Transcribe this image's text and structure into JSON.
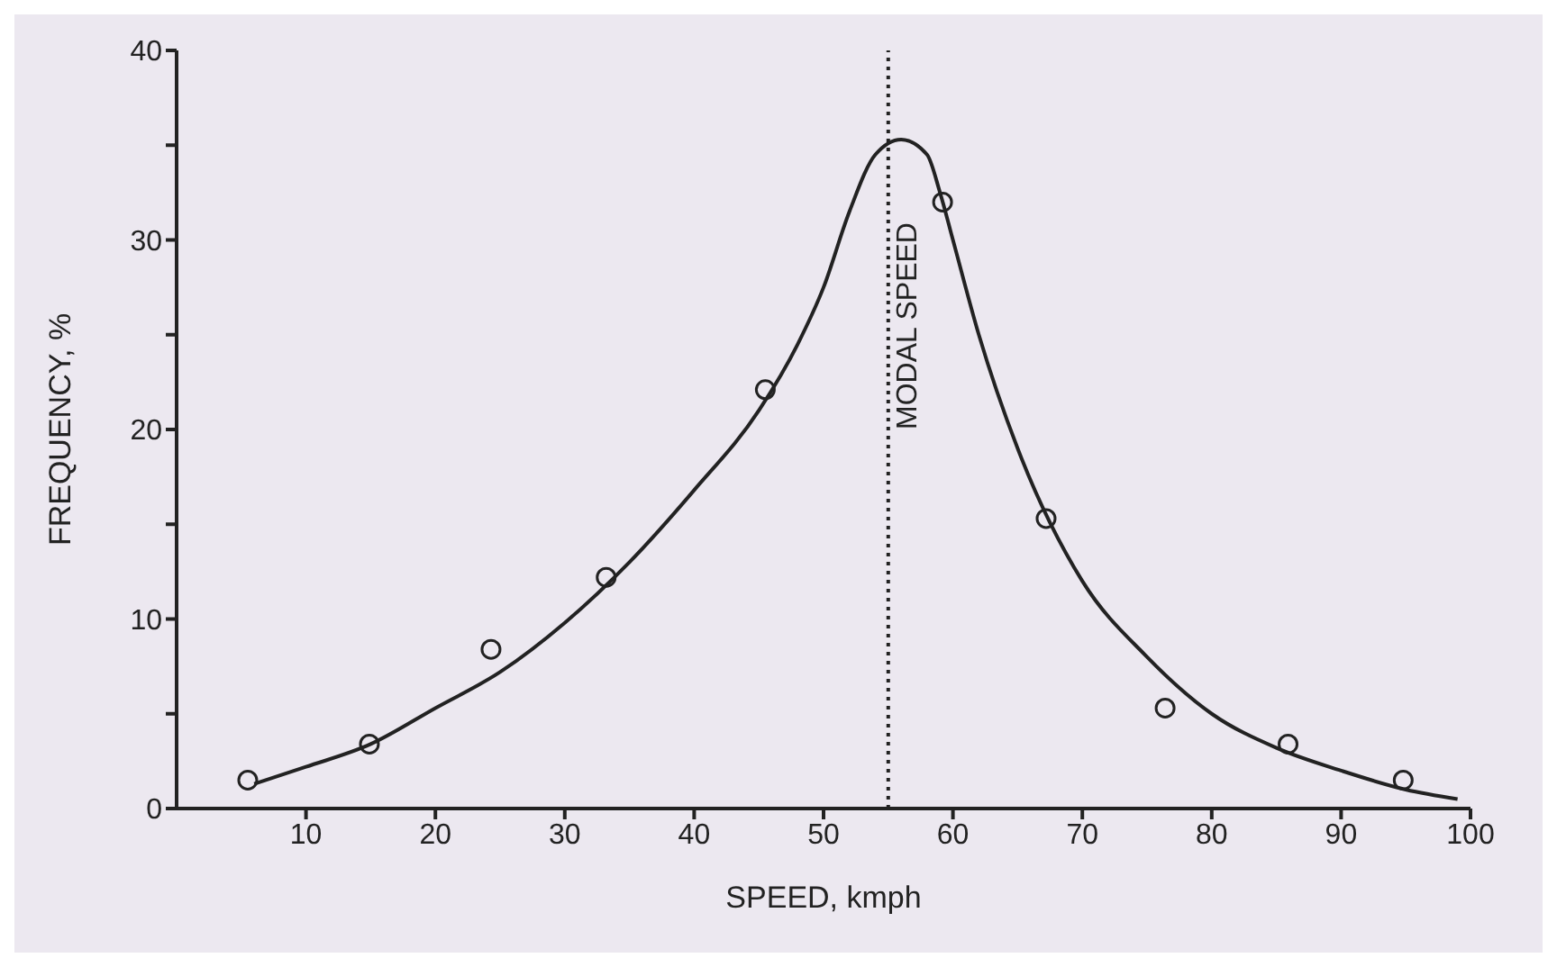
{
  "chart_data": {
    "type": "scatter",
    "xlabel": "SPEED, kmph",
    "ylabel": "FREQUENCY, %",
    "xlim": [
      0,
      100
    ],
    "ylim": [
      0,
      40
    ],
    "xticks": [
      10,
      20,
      30,
      40,
      50,
      60,
      70,
      80,
      90,
      100
    ],
    "yticks": [
      0,
      {
        "value": 5,
        "label": null
      },
      10,
      {
        "value": 15,
        "label": null
      },
      20,
      {
        "value": 25,
        "label": null
      },
      30,
      {
        "value": 35,
        "label": null
      },
      40
    ],
    "grid": false,
    "legend": false,
    "series": [
      {
        "marker": "circle",
        "color": "#222222",
        "x": [
          5.5,
          14.9,
          24.3,
          33.2,
          45.5,
          59.2,
          67.2,
          76.4,
          85.9,
          94.8
        ],
        "values": [
          1.5,
          3.4,
          8.4,
          12.2,
          22.1,
          32,
          15.3,
          5.3,
          3.4,
          1.5
        ]
      },
      {
        "type": "line",
        "marker": "none",
        "line_style": "solid",
        "color": "#222222",
        "x": [
          6,
          10,
          15,
          20,
          25,
          30,
          35,
          40,
          45,
          48,
          50,
          52,
          54,
          56,
          58,
          59,
          60,
          62,
          65,
          70,
          75,
          80,
          85,
          90,
          95,
          99
        ],
        "values": [
          1.3,
          2.2,
          3.4,
          5.3,
          7.2,
          9.8,
          13,
          16.8,
          21,
          24.5,
          27.5,
          31.5,
          34.5,
          35.3,
          34.5,
          32.5,
          30,
          25,
          19,
          12,
          8,
          5,
          3.2,
          2,
          1,
          0.5
        ]
      }
    ],
    "ref_lines": [
      {
        "axis": "x",
        "value": 55,
        "label": "MODAL SPEED",
        "line_style": "dotted",
        "color": "#222222"
      }
    ]
  }
}
